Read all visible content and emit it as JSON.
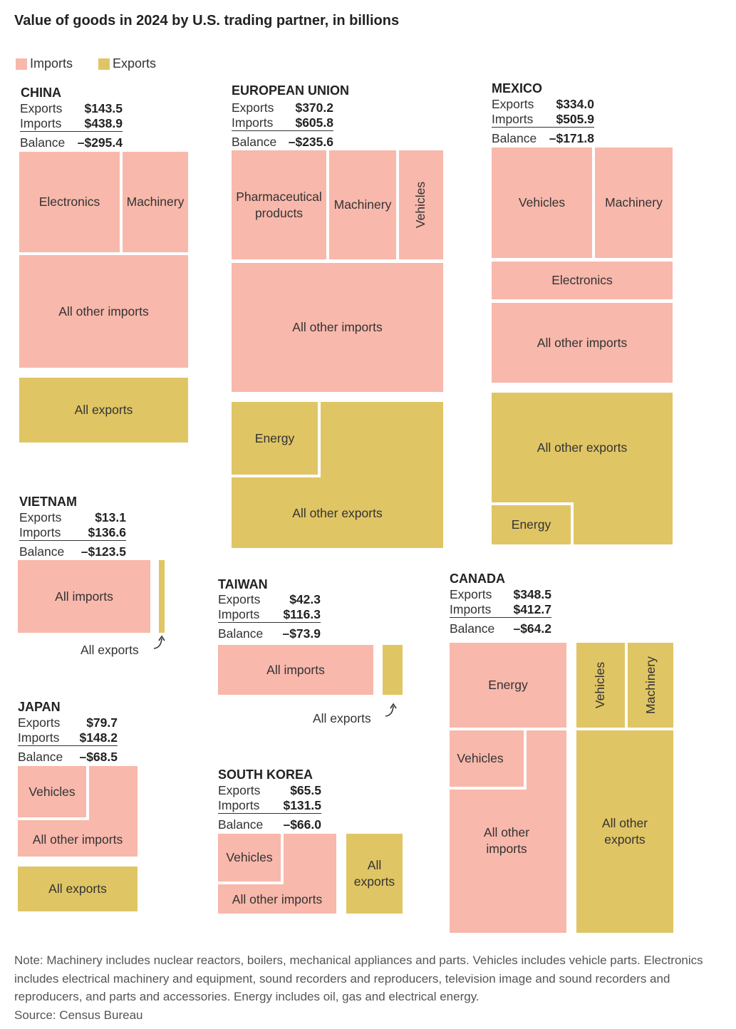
{
  "title": "Value of goods in 2024 by U.S. trading partner, in billions",
  "legend": {
    "imports": "Imports",
    "exports": "Exports"
  },
  "colors": {
    "imports": "#f8b8ab",
    "exports": "#e0c565"
  },
  "labels": {
    "exports": "Exports",
    "imports": "Imports",
    "balance": "Balance"
  },
  "chart_data": {
    "type": "treemap",
    "partners": [
      {
        "name": "CHINA",
        "exports": "$143.5",
        "imports": "$438.9",
        "balance": "–$295.4",
        "import_categories": [
          "Electronics",
          "Machinery",
          "All other imports"
        ],
        "export_categories": [
          "All exports"
        ]
      },
      {
        "name": "EUROPEAN UNION",
        "exports": "$370.2",
        "imports": "$605.8",
        "balance": "–$235.6",
        "import_categories": [
          "Pharmaceutical products",
          "Machinery",
          "Vehicles",
          "All other imports"
        ],
        "export_categories": [
          "Energy",
          "All other exports"
        ]
      },
      {
        "name": "MEXICO",
        "exports": "$334.0",
        "imports": "$505.9",
        "balance": "–$171.8",
        "import_categories": [
          "Vehicles",
          "Machinery",
          "Electronics",
          "All other imports"
        ],
        "export_categories": [
          "All other exports",
          "Energy"
        ]
      },
      {
        "name": "VIETNAM",
        "exports": "$13.1",
        "imports": "$136.6",
        "balance": "–$123.5",
        "import_categories": [
          "All imports"
        ],
        "export_categories": [
          "All exports"
        ]
      },
      {
        "name": "TAIWAN",
        "exports": "$42.3",
        "imports": "$116.3",
        "balance": "–$73.9",
        "import_categories": [
          "All imports"
        ],
        "export_categories": [
          "All exports"
        ]
      },
      {
        "name": "CANADA",
        "exports": "$348.5",
        "imports": "$412.7",
        "balance": "–$64.2",
        "import_categories": [
          "Energy",
          "Vehicles",
          "All other imports"
        ],
        "export_categories": [
          "Vehicles",
          "Machinery",
          "All other exports"
        ]
      },
      {
        "name": "JAPAN",
        "exports": "$79.7",
        "imports": "$148.2",
        "balance": "–$68.5",
        "import_categories": [
          "Vehicles",
          "All other imports"
        ],
        "export_categories": [
          "All exports"
        ]
      },
      {
        "name": "SOUTH KOREA",
        "exports": "$65.5",
        "imports": "$131.5",
        "balance": "–$66.0",
        "import_categories": [
          "Vehicles",
          "All other imports"
        ],
        "export_categories": [
          "All exports"
        ]
      }
    ]
  },
  "note": "Note: Machinery includes nuclear reactors, boilers, mechanical appliances and parts. Vehicles includes vehicle parts. Electronics includes electrical machinery and equipment, sound recorders and reproducers, television image and sound recorders and reproducers, and parts and accessories. Energy includes oil, gas and electrical energy.",
  "source": "Source: Census Bureau"
}
